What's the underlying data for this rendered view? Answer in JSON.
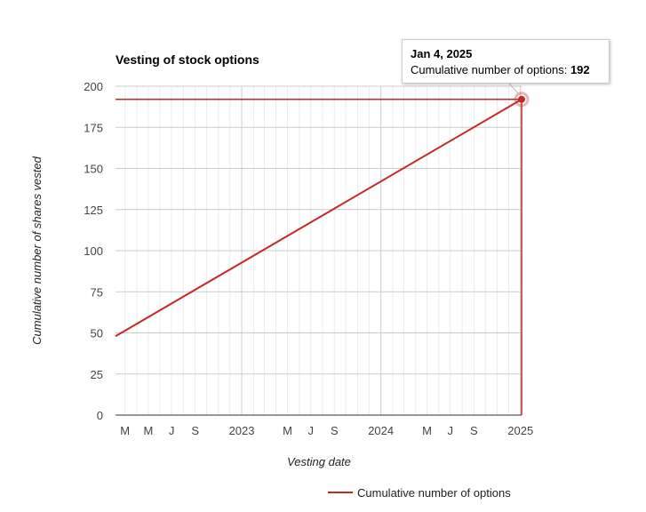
{
  "chart_data": {
    "type": "line",
    "title": "Vesting of stock options",
    "xlabel": "Vesting date",
    "ylabel": "Cumulative number of shares vested",
    "x_range": [
      "2022-02-04",
      "2025-01-04"
    ],
    "ylim": [
      0,
      200
    ],
    "yticks": [
      0,
      25,
      50,
      75,
      100,
      125,
      150,
      175,
      200
    ],
    "xticks": [
      {
        "label": "M",
        "date": "2022-03-01"
      },
      {
        "label": "M",
        "date": "2022-05-01"
      },
      {
        "label": "J",
        "date": "2022-07-01"
      },
      {
        "label": "S",
        "date": "2022-09-01"
      },
      {
        "label": "2023",
        "date": "2023-01-01"
      },
      {
        "label": "M",
        "date": "2023-05-01"
      },
      {
        "label": "J",
        "date": "2023-07-01"
      },
      {
        "label": "S",
        "date": "2023-09-01"
      },
      {
        "label": "2024",
        "date": "2024-01-01"
      },
      {
        "label": "M",
        "date": "2024-05-01"
      },
      {
        "label": "J",
        "date": "2024-07-01"
      },
      {
        "label": "S",
        "date": "2024-09-01"
      },
      {
        "label": "2025",
        "date": "2025-01-01"
      }
    ],
    "minor_gridlines": [
      "2022-03-01",
      "2022-04-01",
      "2022-05-01",
      "2022-06-01",
      "2022-07-01",
      "2022-08-01",
      "2022-09-01",
      "2022-10-01",
      "2022-11-01",
      "2022-12-01",
      "2023-02-01",
      "2023-03-01",
      "2023-04-01",
      "2023-05-01",
      "2023-06-01",
      "2023-07-01",
      "2023-08-01",
      "2023-09-01",
      "2023-10-01",
      "2023-11-01",
      "2023-12-01",
      "2024-02-01",
      "2024-03-01",
      "2024-04-01",
      "2024-05-01",
      "2024-06-01",
      "2024-07-01",
      "2024-08-01",
      "2024-09-01",
      "2024-10-01",
      "2024-11-01",
      "2024-12-01"
    ],
    "major_gridlines": [
      "2023-01-01",
      "2024-01-01",
      "2025-01-01"
    ],
    "series": [
      {
        "name": "Cumulative number of options",
        "color": "#c62828",
        "points": [
          {
            "x": "2022-02-04",
            "y": 48
          },
          {
            "x": "2025-01-04",
            "y": 192
          }
        ]
      }
    ],
    "highlight": {
      "x": "2025-01-04",
      "y": 192,
      "crosshair": true
    },
    "grid": true,
    "legend": "bottom"
  },
  "tooltip": {
    "date": "Jan 4, 2025",
    "label": "Cumulative number of options:",
    "value": "192"
  }
}
